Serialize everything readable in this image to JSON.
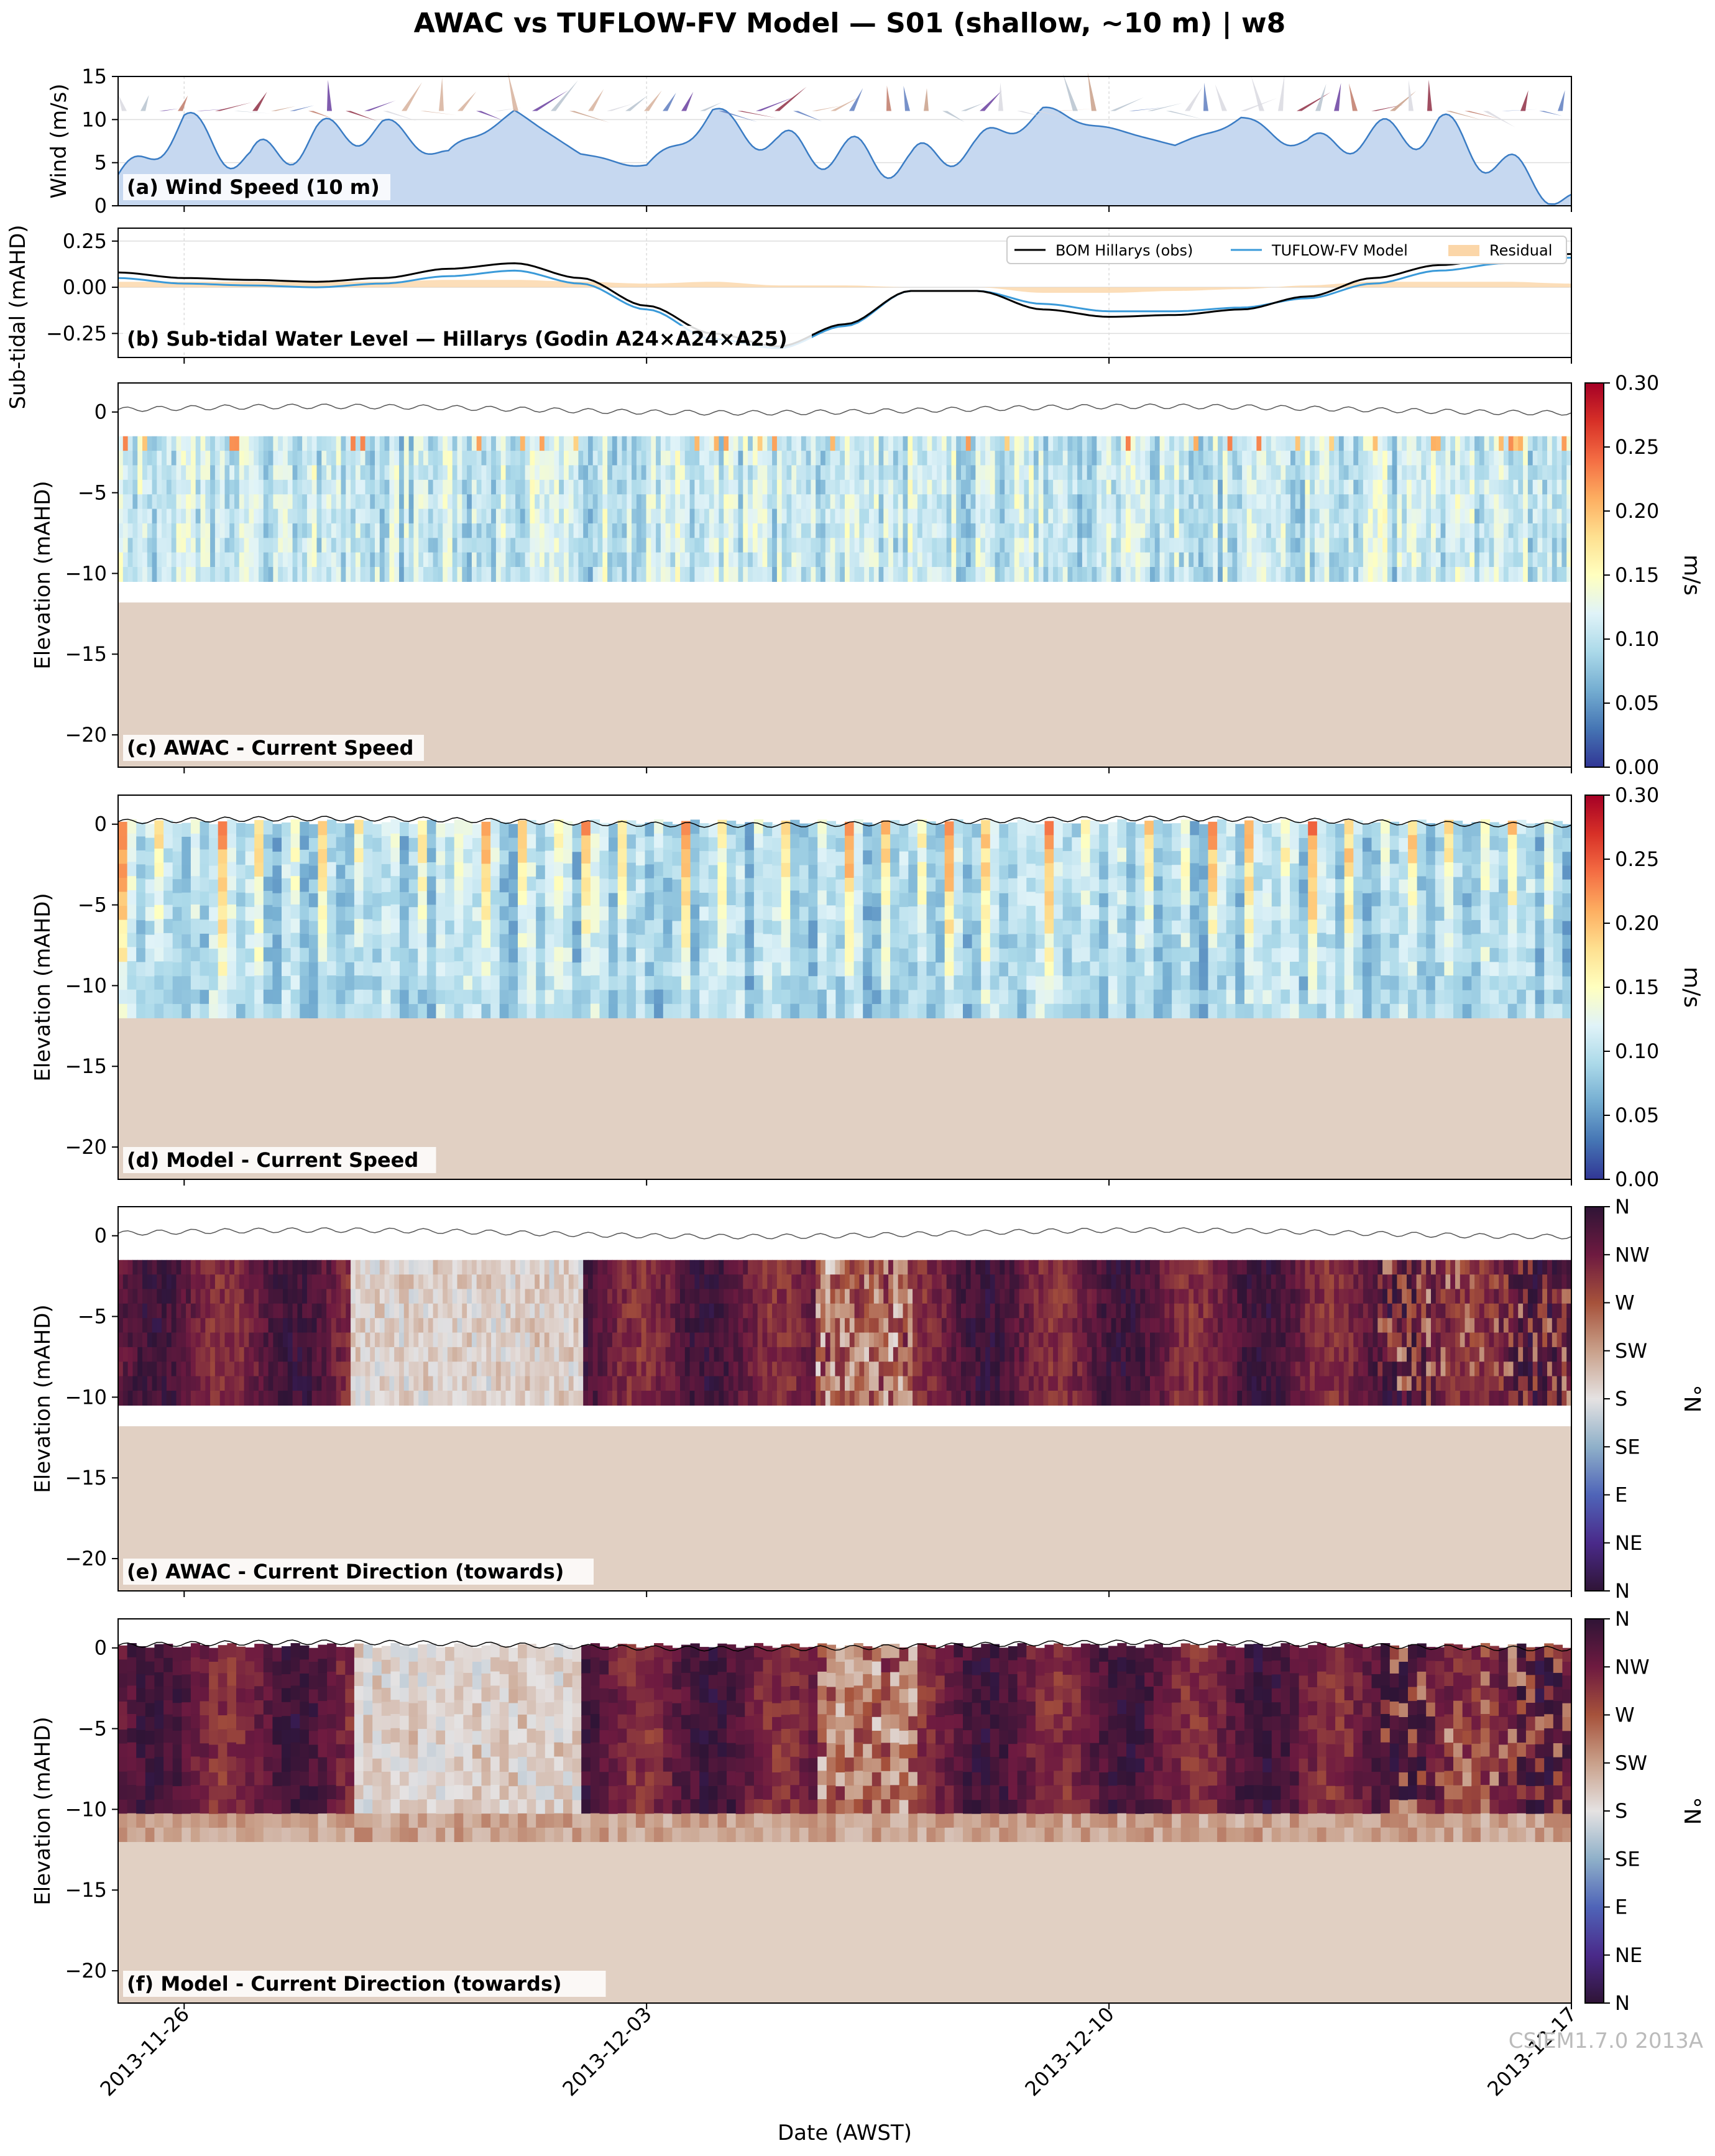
{
  "figure": {
    "title": "AWAC vs TUFLOW-FV Model — S01 (shallow, ~10 m) | w8",
    "xlabel": "Date (AWST)",
    "watermark": "CSIEM1.7.0 2013A",
    "x_ticks": [
      "2013-11-26",
      "2013-12-03",
      "2013-12-10",
      "2013-12-17"
    ]
  },
  "chart_data": [
    {
      "id": "a",
      "type": "area",
      "panel_label": "(a) Wind Speed (10 m)",
      "ylabel": "Wind (m/s)",
      "ylim": [
        0,
        15
      ],
      "yticks": [
        "0",
        "5",
        "10",
        "15"
      ],
      "x": [
        "2013-11-25",
        "2013-11-26",
        "2013-11-27",
        "2013-11-28",
        "2013-11-29",
        "2013-11-30",
        "2013-12-01",
        "2013-12-02",
        "2013-12-03",
        "2013-12-04",
        "2013-12-05",
        "2013-12-06",
        "2013-12-07",
        "2013-12-08",
        "2013-12-09",
        "2013-12-10",
        "2013-12-11",
        "2013-12-12",
        "2013-12-13",
        "2013-12-14",
        "2013-12-15",
        "2013-12-16",
        "2013-12-17"
      ],
      "series": [
        {
          "values": [
            3,
            9.5,
            5,
            8,
            9,
            6,
            11,
            6,
            4.5,
            10.5,
            7,
            6,
            5,
            7,
            11,
            9,
            7,
            10,
            7,
            8,
            9,
            4.5,
            0.5
          ]
        }
      ]
    },
    {
      "id": "b",
      "type": "line",
      "panel_label": "(b) Sub-tidal Water Level — Hillarys (Godin A24×A24×A25)",
      "ylabel": "Sub-tidal (mAHD)",
      "ylim": [
        -0.38,
        0.32
      ],
      "yticks": [
        "0.25",
        "0.00",
        "−0.25"
      ],
      "x": [
        "2013-11-25",
        "2013-11-26",
        "2013-11-27",
        "2013-11-28",
        "2013-11-29",
        "2013-11-30",
        "2013-12-01",
        "2013-12-02",
        "2013-12-03",
        "2013-12-04",
        "2013-12-05",
        "2013-12-06",
        "2013-12-07",
        "2013-12-08",
        "2013-12-09",
        "2013-12-10",
        "2013-12-11",
        "2013-12-12",
        "2013-12-13",
        "2013-12-14",
        "2013-12-15",
        "2013-12-16",
        "2013-12-17"
      ],
      "series": [
        {
          "name": "BOM Hillarys (obs)",
          "values": [
            0.08,
            0.05,
            0.04,
            0.03,
            0.05,
            0.1,
            0.13,
            0.05,
            -0.1,
            -0.25,
            -0.32,
            -0.2,
            -0.02,
            -0.02,
            -0.12,
            -0.16,
            -0.15,
            -0.12,
            -0.05,
            0.05,
            0.12,
            0.16,
            0.18
          ]
        },
        {
          "name": "TUFLOW-FV Model",
          "values": [
            0.05,
            0.02,
            0.01,
            0.0,
            0.02,
            0.06,
            0.09,
            0.02,
            -0.12,
            -0.28,
            -0.33,
            -0.21,
            -0.02,
            -0.02,
            -0.09,
            -0.13,
            -0.13,
            -0.11,
            -0.06,
            0.02,
            0.09,
            0.13,
            0.16
          ]
        },
        {
          "name": "Residual"
        }
      ],
      "legend": "top-right"
    },
    {
      "id": "c",
      "type": "heatmap",
      "panel_label": "(c) AWAC - Current Speed",
      "ylabel": "Elevation (mAHD)",
      "ylim": [
        -22,
        1.8
      ],
      "yticks": [
        "0",
        "−5",
        "−10",
        "−15",
        "−20"
      ],
      "colorbar_label": "m/s",
      "colorbar_ticks": [
        "0.00",
        "0.05",
        "0.10",
        "0.15",
        "0.20",
        "0.25",
        "0.30"
      ],
      "data_top": -1.5,
      "data_bottom": -10.5,
      "seabed": -11.8
    },
    {
      "id": "d",
      "type": "heatmap",
      "panel_label": "(d) Model - Current Speed",
      "ylabel": "Elevation (mAHD)",
      "ylim": [
        -22,
        1.8
      ],
      "yticks": [
        "0",
        "−5",
        "−10",
        "−15",
        "−20"
      ],
      "colorbar_label": "m/s",
      "colorbar_ticks": [
        "0.00",
        "0.05",
        "0.10",
        "0.15",
        "0.20",
        "0.25",
        "0.30"
      ],
      "data_top": 0,
      "data_bottom": -12,
      "seabed": -12
    },
    {
      "id": "e",
      "type": "heatmap",
      "panel_label": "(e) AWAC - Current Direction (towards)",
      "ylabel": "Elevation (mAHD)",
      "ylim": [
        -22,
        1.8
      ],
      "yticks": [
        "0",
        "−5",
        "−10",
        "−15",
        "−20"
      ],
      "colorbar_label": "°N",
      "colorbar_ticks": [
        "N",
        "NE",
        "E",
        "SE",
        "S",
        "SW",
        "W",
        "NW",
        "N"
      ],
      "data_top": -1.5,
      "data_bottom": -10.5,
      "seabed": -11.8
    },
    {
      "id": "f",
      "type": "heatmap",
      "panel_label": "(f) Model - Current Direction (towards)",
      "ylabel": "Elevation (mAHD)",
      "ylim": [
        -22,
        1.8
      ],
      "yticks": [
        "0",
        "−5",
        "−10",
        "−15",
        "−20"
      ],
      "colorbar_label": "°N",
      "colorbar_ticks": [
        "N",
        "NE",
        "E",
        "SE",
        "S",
        "SW",
        "W",
        "NW",
        "N"
      ],
      "data_top": 0,
      "data_bottom": -12,
      "seabed": -12
    }
  ],
  "colors": {
    "wind_fill": "#c6d8f0",
    "wind_line": "#3a7cc4",
    "obs_line": "#000000",
    "model_line": "#3a9ad9",
    "residual_fill": "#fbd6a8",
    "seabed": "#e1d0c3",
    "grid": "#dddddd"
  }
}
